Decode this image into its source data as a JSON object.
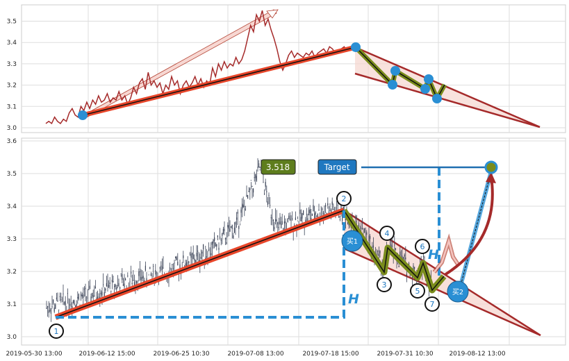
{
  "chart_data": [
    {
      "type": "line",
      "panel": "top",
      "ylim": [
        2.98,
        3.58
      ],
      "yticks": [
        "3.0",
        "3.1",
        "3.2",
        "3.3",
        "3.4",
        "3.5"
      ],
      "grid": true,
      "price_series": {
        "name": "",
        "values": [
          3.02,
          3.03,
          3.02,
          3.05,
          3.03,
          3.02,
          3.04,
          3.03,
          3.07,
          3.09,
          3.06,
          3.05,
          3.1,
          3.08,
          3.12,
          3.09,
          3.13,
          3.11,
          3.15,
          3.12,
          3.13,
          3.16,
          3.12,
          3.14,
          3.13,
          3.17,
          3.13,
          3.15,
          3.11,
          3.14,
          3.19,
          3.16,
          3.21,
          3.23,
          3.18,
          3.26,
          3.2,
          3.22,
          3.19,
          3.21,
          3.16,
          3.2,
          3.18,
          3.24,
          3.2,
          3.22,
          3.16,
          3.2,
          3.22,
          3.19,
          3.21,
          3.24,
          3.2,
          3.23,
          3.19,
          3.22,
          3.2,
          3.28,
          3.24,
          3.3,
          3.27,
          3.31,
          3.28,
          3.3,
          3.29,
          3.33,
          3.3,
          3.32,
          3.36,
          3.42,
          3.48,
          3.45,
          3.53,
          3.5,
          3.55,
          3.48,
          3.51,
          3.46,
          3.42,
          3.37,
          3.31,
          3.27,
          3.3,
          3.34,
          3.36,
          3.33,
          3.35,
          3.34,
          3.33,
          3.35,
          3.34,
          3.36,
          3.33,
          3.35,
          3.36,
          3.37,
          3.35,
          3.38,
          3.37,
          3.35,
          3.36,
          3.37,
          3.38,
          3.36,
          3.38,
          3.37
        ]
      },
      "markers": [
        3.06,
        3.38,
        3.2,
        3.27,
        3.18,
        3.23,
        3.14
      ]
    },
    {
      "type": "candlestick",
      "panel": "bottom",
      "ylim": [
        2.97,
        3.61
      ],
      "yticks": [
        "3.0",
        "3.1",
        "3.2",
        "3.3",
        "3.4",
        "3.5",
        "3.6"
      ],
      "xticks": [
        "2019-05-30 13:00",
        "2019-06-12 15:00",
        "2019-06-25 10:30",
        "2019-07-08 13:00",
        "2019-07-18 15:00",
        "2019-07-31 10:30",
        "2019-08-12 13:00"
      ],
      "grid": true,
      "price_label": "3.518",
      "target_label": "Target",
      "buy_labels": [
        "买1",
        "买2"
      ],
      "height_label": "H",
      "points": [
        {
          "label": "1",
          "value": 3.06
        },
        {
          "label": "2",
          "value": 3.38
        },
        {
          "label": "3",
          "value": 3.21
        },
        {
          "label": "4",
          "value": 3.27
        },
        {
          "label": "5",
          "value": 3.17
        },
        {
          "label": "6",
          "value": 3.23
        },
        {
          "label": "7",
          "value": 3.14
        }
      ],
      "target_value": 3.52
    }
  ],
  "colors": {
    "price_line": "#a52a2a",
    "trend_red": "#e8462a",
    "trend_core": "#111111",
    "zigzag_olive": "#7a8c1c",
    "marker_blue": "#2a8fd4",
    "dashed_blue": "#2a8fd4",
    "wedge_fill": "#f5d5cf",
    "wedge_edge": "#a52a2a",
    "candle": "#3a4256",
    "price_badge": "#5e7d1d",
    "target_badge": "#1f78c0"
  }
}
